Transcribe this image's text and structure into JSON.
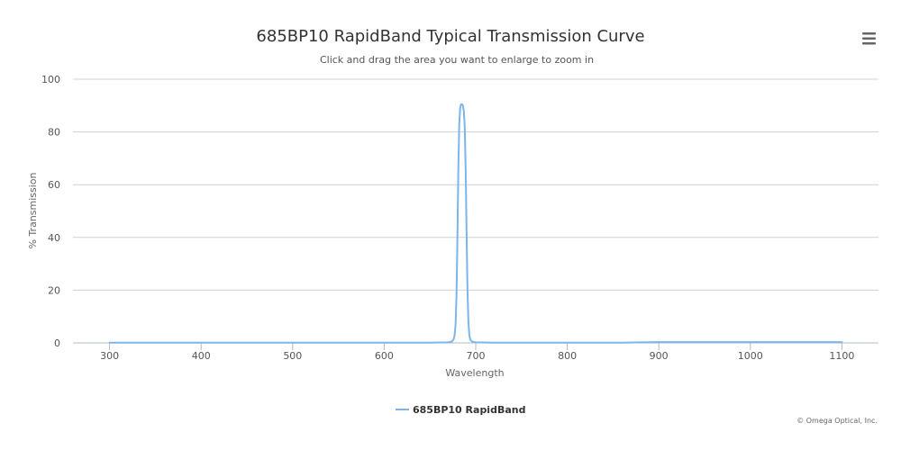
{
  "menu": {
    "icon": "hamburger-menu-icon"
  },
  "chart_data": {
    "type": "line",
    "title": "685BP10 RapidBand Typical Transmission Curve",
    "subtitle": "Click and drag the area you want to enlarge to zoom in",
    "xlabel": "Wavelength",
    "ylabel": "% Transmission",
    "xlim": [
      260,
      1140
    ],
    "ylim": [
      0,
      100
    ],
    "x_ticks": [
      300,
      400,
      500,
      600,
      700,
      800,
      900,
      1000,
      1100
    ],
    "y_ticks": [
      0,
      20,
      40,
      60,
      80,
      100
    ],
    "grid": true,
    "legend_position": "bottom-center",
    "credits": "© Omega Optical, Inc.",
    "series": [
      {
        "name": "685BP10 RapidBand",
        "color": "#7cb5ec",
        "x": [
          300,
          500,
          650,
          670,
          674,
          676,
          677,
          678,
          679,
          680,
          681,
          682,
          683,
          684,
          685,
          686,
          687,
          688,
          689,
          690,
          691,
          692,
          693,
          694,
          696,
          700,
          720,
          800,
          860,
          880,
          900,
          950,
          1000,
          1050,
          1100
        ],
        "y": [
          0.1,
          0.1,
          0.1,
          0.2,
          0.5,
          1.5,
          3,
          7,
          18,
          40,
          66,
          83,
          89,
          90.5,
          90.5,
          90,
          88,
          82,
          66,
          42,
          20,
          8,
          3,
          1.2,
          0.5,
          0.2,
          0.1,
          0.1,
          0.1,
          0.2,
          0.3,
          0.3,
          0.3,
          0.3,
          0.3
        ]
      }
    ]
  }
}
